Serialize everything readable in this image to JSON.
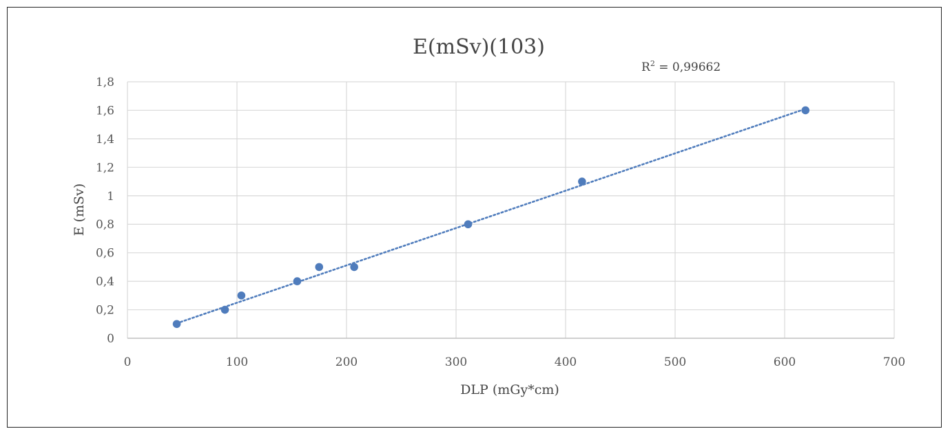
{
  "chart_data": {
    "type": "scatter",
    "title": "E(mSv)(103)",
    "xlabel": "DLP (mGy*cm)",
    "ylabel": "E (mSv)",
    "xlim": [
      0,
      700
    ],
    "ylim": [
      0,
      1.8
    ],
    "x_ticks": [
      "0",
      "100",
      "200",
      "300",
      "400",
      "500",
      "600",
      "700"
    ],
    "y_ticks": [
      "0",
      "0,2",
      "0,4",
      "0,6",
      "0,8",
      "1",
      "1,2",
      "1,4",
      "1,6",
      "1,8"
    ],
    "grid": true,
    "series": [
      {
        "x": [
          45,
          89,
          104,
          155,
          175,
          207,
          311,
          415,
          619
        ],
        "y": [
          0.1,
          0.2,
          0.3,
          0.4,
          0.5,
          0.5,
          0.8,
          1.1,
          1.6
        ],
        "color": "#4f7cbc"
      }
    ],
    "trendline": {
      "type": "linear",
      "style": "dotted",
      "color": "#4f7cbc",
      "x_range": [
        45,
        619
      ],
      "y_range": [
        0.105,
        1.61
      ]
    },
    "annotation": {
      "r2_text": "0,99662"
    }
  }
}
